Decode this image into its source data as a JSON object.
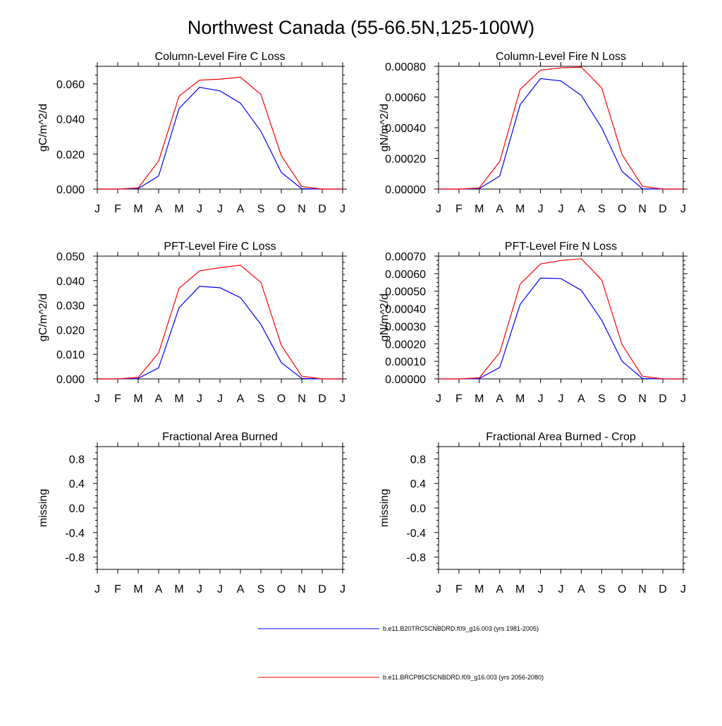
{
  "title": "Northwest Canada (55-66.5N,125-100W)",
  "colors": {
    "series_1": "#0000ff",
    "series_2": "#ff0000",
    "axis": "#000000"
  },
  "legend": [
    {
      "label": "b.e11.B20TRC5CNBDRD.f09_g16.003 (yrs 1981-2005)",
      "color": "#0000ff"
    },
    {
      "label": "b.e11.BRCP85C5CNBDRD.f09_g16.003 (yrs 2056-2080)",
      "color": "#ff0000"
    }
  ],
  "chart_data": [
    {
      "type": "line",
      "title": "Column-Level Fire C Loss",
      "ylabel": "gC/m^2/d",
      "categories": [
        "J",
        "F",
        "M",
        "A",
        "M",
        "J",
        "J",
        "A",
        "S",
        "O",
        "N",
        "D",
        "J"
      ],
      "ylim": [
        0,
        0.07
      ],
      "yticks": [
        0,
        0.02,
        0.04,
        0.06
      ],
      "ytick_labels": [
        "0.000",
        "0.020",
        "0.040",
        "0.060"
      ],
      "series": [
        {
          "name": "b.e11.B20TRC5CNBDRD.f09_g16.003 (yrs 1981-2005)",
          "color": "#0000ff",
          "values": [
            0,
            0,
            0.0003,
            0.0075,
            0.046,
            0.058,
            0.056,
            0.049,
            0.033,
            0.0095,
            0.0002,
            0,
            0
          ]
        },
        {
          "name": "b.e11.BRCP85C5CNBDRD.f09_g16.003 (yrs 2056-2080)",
          "color": "#ff0000",
          "values": [
            0,
            0,
            0.0007,
            0.016,
            0.053,
            0.0621,
            0.0627,
            0.0638,
            0.054,
            0.019,
            0.0015,
            0,
            0
          ]
        }
      ]
    },
    {
      "type": "line",
      "title": "Column-Level Fire N Loss",
      "ylabel": "gN/m^2/d",
      "categories": [
        "J",
        "F",
        "M",
        "A",
        "M",
        "J",
        "J",
        "A",
        "S",
        "O",
        "N",
        "D",
        "J"
      ],
      "ylim": [
        0,
        0.0008
      ],
      "yticks": [
        0,
        0.0002,
        0.0004,
        0.0006,
        0.0008
      ],
      "ytick_labels": [
        "0.00000",
        "0.00020",
        "0.00040",
        "0.00060",
        "0.00080"
      ],
      "series": [
        {
          "name": "b.e11.B20TRC5CNBDRD.f09_g16.003 (yrs 1981-2005)",
          "color": "#0000ff",
          "values": [
            0,
            0,
            3e-06,
            8.5e-05,
            0.00055,
            0.00072,
            0.000705,
            0.00061,
            0.0004,
            0.000115,
            2e-06,
            0,
            0
          ]
        },
        {
          "name": "b.e11.BRCP85C5CNBDRD.f09_g16.003 (yrs 2056-2080)",
          "color": "#ff0000",
          "values": [
            0,
            0,
            8e-06,
            0.00018,
            0.00065,
            0.000775,
            0.00079,
            0.000795,
            0.00066,
            0.000225,
            1.8e-05,
            0,
            0
          ]
        }
      ]
    },
    {
      "type": "line",
      "title": "PFT-Level Fire C Loss",
      "ylabel": "gC/m^2/d",
      "categories": [
        "J",
        "F",
        "M",
        "A",
        "M",
        "J",
        "J",
        "A",
        "S",
        "O",
        "N",
        "D",
        "J"
      ],
      "ylim": [
        0,
        0.05
      ],
      "yticks": [
        0,
        0.01,
        0.02,
        0.03,
        0.04,
        0.05
      ],
      "ytick_labels": [
        "0.000",
        "0.010",
        "0.020",
        "0.030",
        "0.040",
        "0.050"
      ],
      "series": [
        {
          "name": "b.e11.B20TRC5CNBDRD.f09_g16.003 (yrs 1981-2005)",
          "color": "#0000ff",
          "values": [
            0,
            0,
            0.0002,
            0.0045,
            0.029,
            0.0377,
            0.0371,
            0.0331,
            0.0222,
            0.0066,
            0.0002,
            0,
            0
          ]
        },
        {
          "name": "b.e11.BRCP85C5CNBDRD.f09_g16.003 (yrs 2056-2080)",
          "color": "#ff0000",
          "values": [
            0,
            0,
            0.0006,
            0.0106,
            0.0369,
            0.044,
            0.0453,
            0.0463,
            0.0393,
            0.0137,
            0.0011,
            0,
            0
          ]
        }
      ]
    },
    {
      "type": "line",
      "title": "PFT-Level Fire N Loss",
      "ylabel": "gN/m^2/d",
      "categories": [
        "J",
        "F",
        "M",
        "A",
        "M",
        "J",
        "J",
        "A",
        "S",
        "O",
        "N",
        "D",
        "J"
      ],
      "ylim": [
        0,
        0.0007
      ],
      "yticks": [
        0,
        0.0001,
        0.0002,
        0.0003,
        0.0004,
        0.0005,
        0.0006,
        0.0007
      ],
      "ytick_labels": [
        "0.00000",
        "0.00010",
        "0.00020",
        "0.00030",
        "0.00040",
        "0.00050",
        "0.00060",
        "0.00070"
      ],
      "series": [
        {
          "name": "b.e11.B20TRC5CNBDRD.f09_g16.003 (yrs 1981-2005)",
          "color": "#0000ff",
          "values": [
            0,
            0,
            2e-06,
            6.5e-05,
            0.000425,
            0.000575,
            0.000572,
            0.000505,
            0.000335,
            0.0001,
            2e-06,
            0,
            0
          ]
        },
        {
          "name": "b.e11.BRCP85C5CNBDRD.f09_g16.003 (yrs 2056-2080)",
          "color": "#ff0000",
          "values": [
            0,
            0,
            6e-06,
            0.00015,
            0.00054,
            0.000655,
            0.000675,
            0.000685,
            0.000565,
            0.000195,
            1.5e-05,
            0,
            0
          ]
        }
      ]
    },
    {
      "type": "line",
      "title": "Fractional Area Burned",
      "ylabel": "missing",
      "categories": [
        "J",
        "F",
        "M",
        "A",
        "M",
        "J",
        "J",
        "A",
        "S",
        "O",
        "N",
        "D",
        "J"
      ],
      "ylim": [
        -1,
        1
      ],
      "yticks": [
        -0.8,
        -0.4,
        0.0,
        0.4,
        0.8
      ],
      "ytick_labels": [
        "-0.8",
        "-0.4",
        "0.0",
        "0.4",
        "0.8"
      ],
      "series": []
    },
    {
      "type": "line",
      "title": "Fractional Area Burned - Crop",
      "ylabel": "missing",
      "categories": [
        "J",
        "F",
        "M",
        "A",
        "M",
        "J",
        "J",
        "A",
        "S",
        "O",
        "N",
        "D",
        "J"
      ],
      "ylim": [
        -1,
        1
      ],
      "yticks": [
        -0.8,
        -0.4,
        0.0,
        0.4,
        0.8
      ],
      "ytick_labels": [
        "-0.8",
        "-0.4",
        "0.0",
        "0.4",
        "0.8"
      ],
      "series": []
    }
  ]
}
